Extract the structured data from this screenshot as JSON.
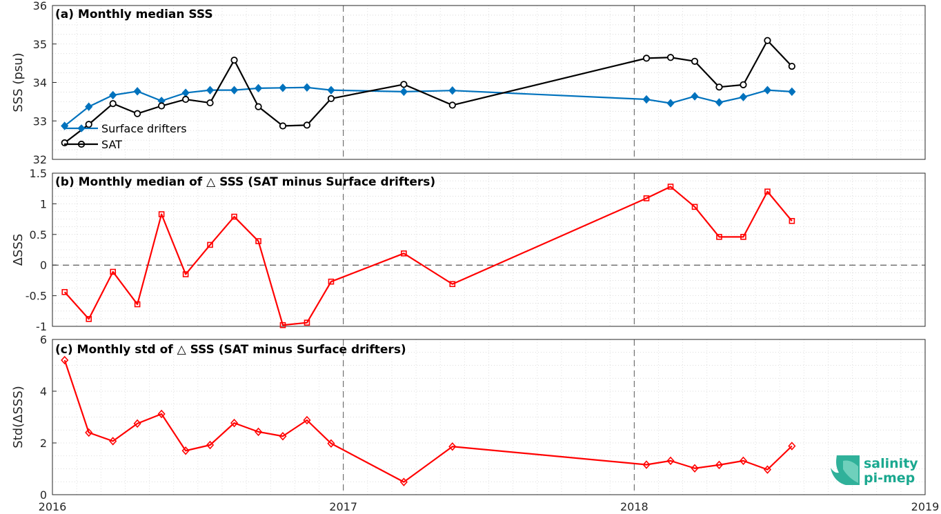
{
  "chart_data": [
    {
      "type": "line",
      "title": "(a) Monthly median SSS",
      "ylabel": "SSS (psu)",
      "xlim": [
        2016,
        2019
      ],
      "ylim": [
        32,
        36
      ],
      "yticks": [
        32,
        33,
        34,
        35,
        36
      ],
      "grid": "dotted minor and major",
      "legend_position": "bottom-left",
      "series": [
        {
          "name": "Surface drifters",
          "color": "#0072BD",
          "marker": "diamond",
          "x": [
            2016.042,
            2016.125,
            2016.208,
            2016.292,
            2016.375,
            2016.458,
            2016.542,
            2016.625,
            2016.708,
            2016.792,
            2016.875,
            2016.958,
            2017.208,
            2017.375,
            2018.042,
            2018.125,
            2018.208,
            2018.292,
            2018.375,
            2018.458,
            2018.542
          ],
          "y": [
            32.87,
            33.37,
            33.67,
            33.77,
            33.52,
            33.73,
            33.8,
            33.8,
            33.85,
            33.86,
            33.87,
            33.8,
            33.76,
            33.79,
            33.56,
            33.46,
            33.64,
            33.48,
            33.62,
            33.8,
            33.76
          ]
        },
        {
          "name": "SAT",
          "color": "#000000",
          "marker": "circle",
          "x": [
            2016.042,
            2016.125,
            2016.208,
            2016.292,
            2016.375,
            2016.458,
            2016.542,
            2016.625,
            2016.708,
            2016.792,
            2016.875,
            2016.958,
            2017.208,
            2017.375,
            2018.042,
            2018.125,
            2018.208,
            2018.292,
            2018.375,
            2018.458,
            2018.542
          ],
          "y": [
            32.43,
            32.91,
            33.45,
            33.19,
            33.39,
            33.56,
            33.47,
            34.58,
            33.37,
            32.87,
            32.89,
            33.58,
            33.95,
            33.41,
            34.63,
            34.65,
            34.55,
            33.88,
            33.94,
            35.09,
            34.42
          ]
        }
      ]
    },
    {
      "type": "line",
      "title": "(b) Monthly median of △ SSS (SAT minus Surface drifters)",
      "ylabel": "ΔSSS",
      "xlim": [
        2016,
        2019
      ],
      "ylim": [
        -1,
        1.5
      ],
      "yticks": [
        -1,
        -0.5,
        0,
        0.5,
        1,
        1.5
      ],
      "ytick_labels": [
        "-1",
        "-0.5",
        "0",
        "0.5",
        "1",
        "1.5"
      ],
      "zero_line": true,
      "series": [
        {
          "color": "#FF0000",
          "marker": "square",
          "x": [
            2016.042,
            2016.125,
            2016.208,
            2016.292,
            2016.375,
            2016.458,
            2016.542,
            2016.625,
            2016.708,
            2016.792,
            2016.875,
            2016.958,
            2017.208,
            2017.375,
            2018.042,
            2018.125,
            2018.208,
            2018.292,
            2018.375,
            2018.458,
            2018.542
          ],
          "y": [
            -0.44,
            -0.88,
            -0.11,
            -0.64,
            0.83,
            -0.15,
            0.33,
            0.79,
            0.39,
            -0.98,
            -0.94,
            -0.27,
            0.19,
            -0.31,
            1.09,
            1.28,
            0.95,
            0.46,
            0.46,
            1.2,
            0.72
          ]
        }
      ]
    },
    {
      "type": "line",
      "title": "(c) Monthly std of △ SSS (SAT minus Surface drifters)",
      "ylabel": "Std(ΔSSS)",
      "xlim": [
        2016,
        2019
      ],
      "ylim": [
        0,
        6
      ],
      "yticks": [
        0,
        2,
        4,
        6
      ],
      "xticks": [
        2016,
        2017,
        2018,
        2019
      ],
      "series": [
        {
          "color": "#FF0000",
          "marker": "diamond",
          "x": [
            2016.042,
            2016.125,
            2016.208,
            2016.292,
            2016.375,
            2016.458,
            2016.542,
            2016.625,
            2016.708,
            2016.792,
            2016.875,
            2016.958,
            2017.208,
            2017.375,
            2018.042,
            2018.125,
            2018.208,
            2018.292,
            2018.375,
            2018.458,
            2018.542
          ],
          "y": [
            5.2,
            2.4,
            2.07,
            2.75,
            3.12,
            1.7,
            1.92,
            2.77,
            2.43,
            2.26,
            2.88,
            1.98,
            0.49,
            1.86,
            1.16,
            1.31,
            1.02,
            1.15,
            1.31,
            0.97,
            1.88
          ]
        }
      ]
    }
  ],
  "logo": {
    "line1": "salinity",
    "line2": "pi-mep",
    "color": "#1aa88f"
  }
}
